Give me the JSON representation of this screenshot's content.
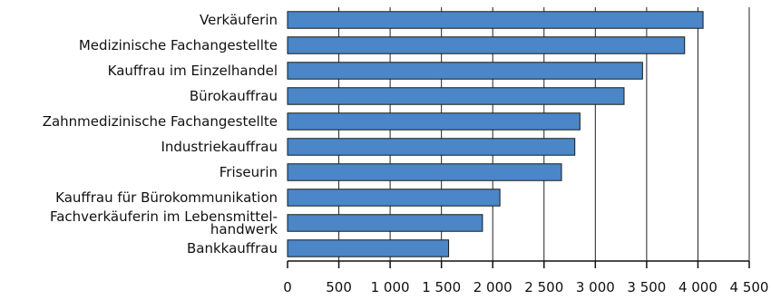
{
  "chart_data": {
    "type": "bar",
    "orientation": "horizontal",
    "categories": [
      "Verkäuferin",
      "Medizinische Fachangestellte",
      "Kauffrau im Einzelhandel",
      "Bürokauffrau",
      "Zahnmedizinische Fachangestellte",
      "Industriekauffrau",
      "Friseurin",
      "Kauffrau für Bürokommunikation",
      "Fachverkäuferin im Lebensmittel-\nhandwerk",
      "Bankkauffrau"
    ],
    "values": [
      4050,
      3870,
      3460,
      3280,
      2850,
      2800,
      2670,
      2070,
      1900,
      1570
    ],
    "xlim": [
      0,
      4500
    ],
    "xticks": [
      0,
      500,
      1000,
      1500,
      2000,
      2500,
      3000,
      3500,
      4000,
      4500
    ],
    "xtick_labels": [
      "0",
      "500",
      "1 000",
      "1 500",
      "2 000",
      "2 500",
      "3 000",
      "3 500",
      "4 000",
      "4 500"
    ],
    "grid": "vertical",
    "bar_color": "#4a86c8",
    "bar_edge_color": "#1a1a1a",
    "title": "",
    "xlabel": "",
    "ylabel": ""
  }
}
